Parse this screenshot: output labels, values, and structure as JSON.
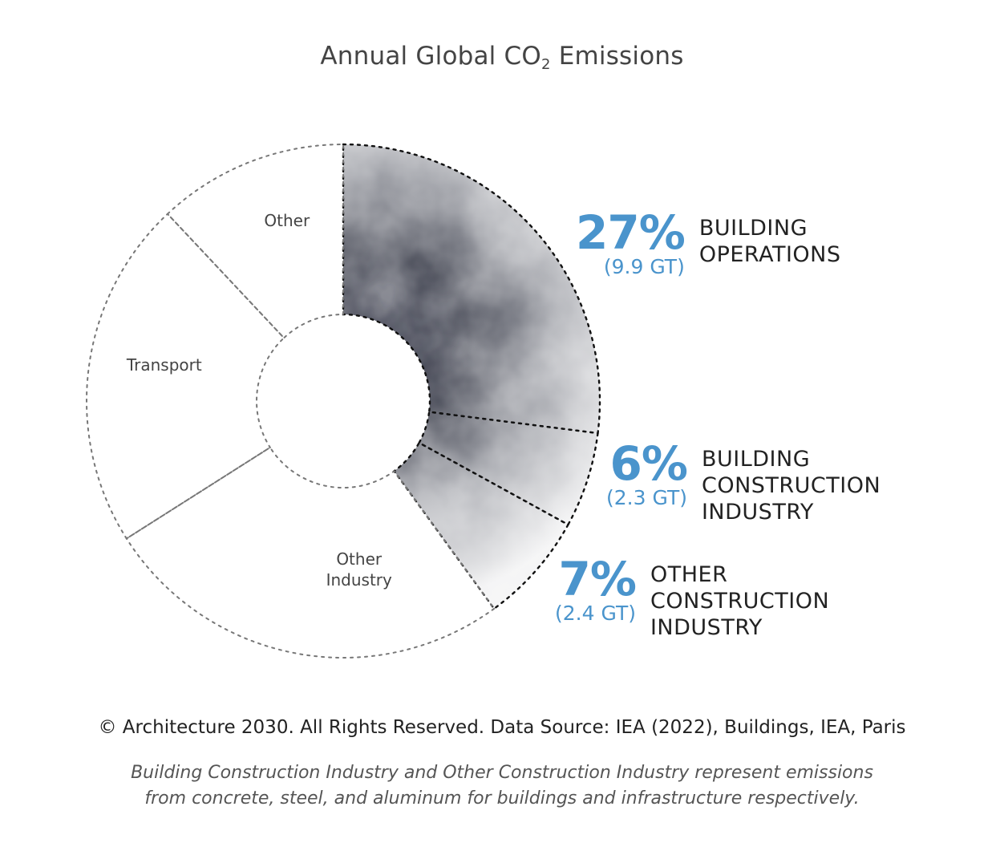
{
  "chart_data": {
    "type": "pie",
    "title_main": "Annual Global CO",
    "title_sub": "2",
    "title_tail": " Emissions",
    "slices": [
      {
        "label": "Building Operations",
        "value": 27,
        "unit_value": "9.9 GT",
        "highlighted": true
      },
      {
        "label": "Building Construction Industry",
        "value": 6,
        "unit_value": "2.3 GT",
        "highlighted": true
      },
      {
        "label": "Other Construction Industry",
        "value": 7,
        "unit_value": "2.4 GT",
        "highlighted": true
      },
      {
        "label": "Other Industry",
        "value": 26,
        "highlighted": false
      },
      {
        "label": "Transport",
        "value": 22,
        "highlighted": false
      },
      {
        "label": "Other",
        "value": 12,
        "highlighted": false
      }
    ],
    "segment_labels": {
      "other": "Other",
      "transport": "Transport",
      "other_industry_1": "Other",
      "other_industry_2": "Industry"
    },
    "callouts": {
      "operations": {
        "pct": "27%",
        "gt": "(9.9 GT)",
        "line1": "BUILDING",
        "line2": "OPERATIONS"
      },
      "construction": {
        "pct": "6%",
        "gt": "(2.3 GT)",
        "line1": "BUILDING",
        "line2": "CONSTRUCTION",
        "line3": "INDUSTRY"
      },
      "other_construction": {
        "pct": "7%",
        "gt": "(2.4 GT)",
        "line1": "OTHER",
        "line2": "CONSTRUCTION",
        "line3": "INDUSTRY"
      }
    },
    "colors": {
      "accent": "#4a94cc",
      "dark": "#1c1f2b",
      "outline": "#222222"
    }
  },
  "footer": {
    "copyright": "© Architecture 2030. All Rights Reserved. Data Source: IEA (2022), Buildings, IEA, Paris",
    "note_line1": "Building Construction Industry and Other Construction Industry represent emissions",
    "note_line2": "from concrete, steel, and aluminum for buildings and infrastructure respectively."
  }
}
